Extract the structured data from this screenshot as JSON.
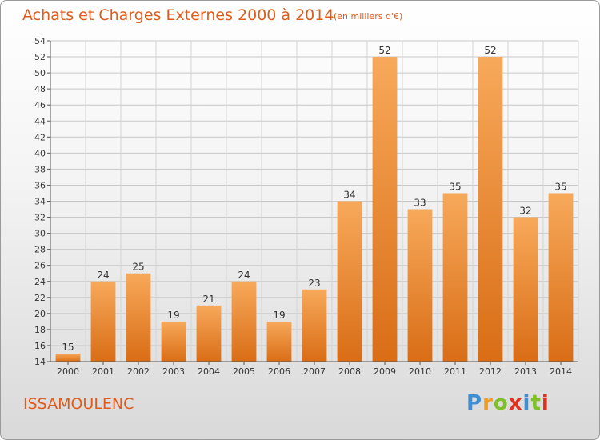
{
  "header": {
    "title": "Achats et Charges Externes 2000 à 2014",
    "unit": "(en milliers d'€)"
  },
  "footer": {
    "place": "ISSAMOULENC",
    "logo_text": "Proxiti",
    "logo_colors": [
      "#3e8ed6",
      "#f29b1d",
      "#7fbf2a",
      "#e0301e",
      "#3e8ed6",
      "#7fbf2a",
      "#e0301e"
    ]
  },
  "colors": {
    "bar_light": "#f7a95a",
    "bar_dark": "#d96d16",
    "text": "#e05b1b"
  },
  "chart_data": {
    "type": "bar",
    "title": "Achats et Charges Externes 2000 à 2014",
    "categories": [
      "2000",
      "2001",
      "2002",
      "2003",
      "2004",
      "2005",
      "2006",
      "2007",
      "2008",
      "2009",
      "2010",
      "2011",
      "2012",
      "2013",
      "2014"
    ],
    "values": [
      15,
      24,
      25,
      19,
      21,
      24,
      19,
      23,
      34,
      52,
      33,
      35,
      52,
      32,
      35
    ],
    "xlabel": "",
    "ylabel": "",
    "ylim": [
      14,
      54
    ],
    "yticks": [
      14,
      16,
      18,
      20,
      22,
      24,
      26,
      28,
      30,
      32,
      34,
      36,
      38,
      40,
      42,
      44,
      46,
      48,
      50,
      52,
      54
    ],
    "grid": true,
    "legend": "none",
    "data_labels": true
  }
}
